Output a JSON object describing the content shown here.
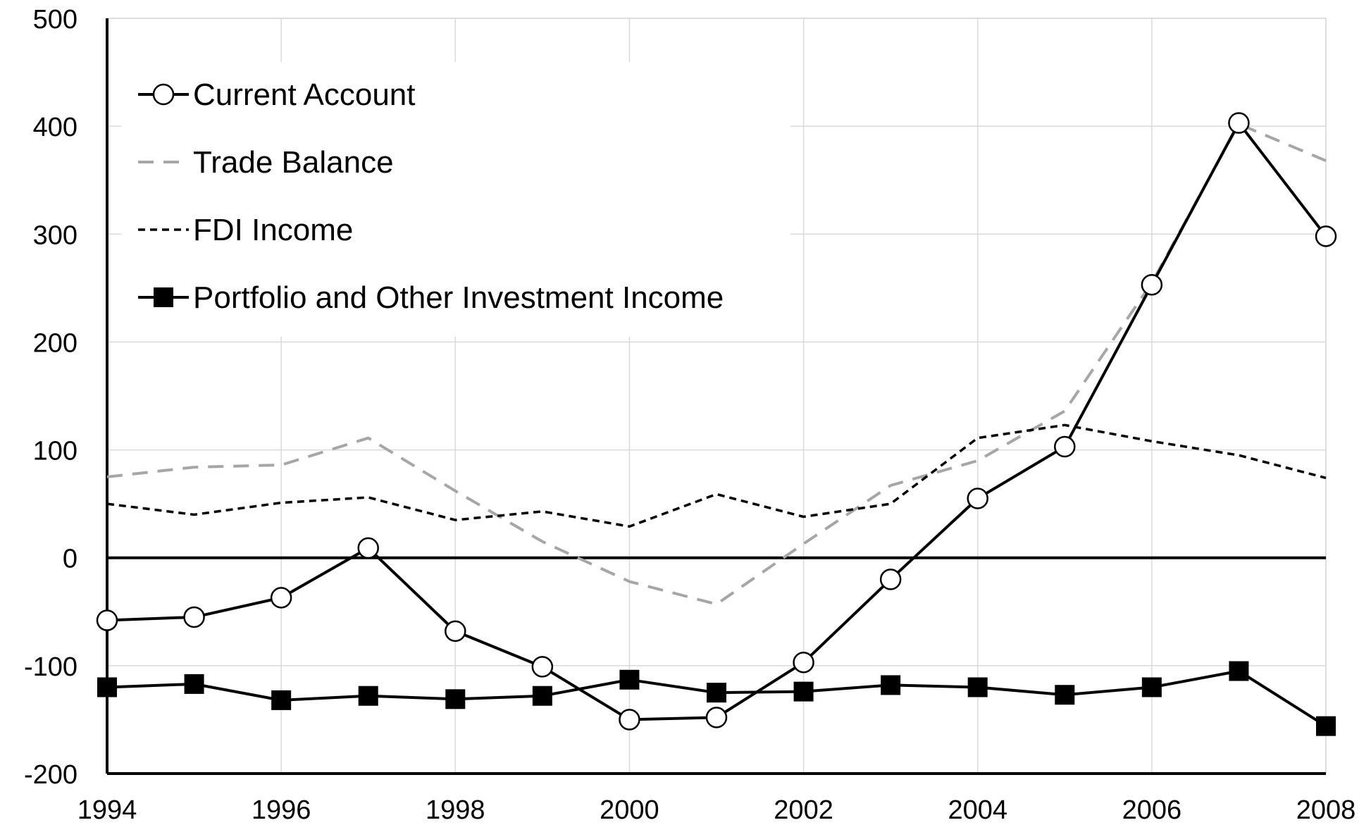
{
  "chart_data": {
    "type": "line",
    "title": "",
    "xlabel": "",
    "ylabel": "",
    "x": [
      1994,
      1995,
      1996,
      1997,
      1998,
      1999,
      2000,
      2001,
      2002,
      2003,
      2004,
      2005,
      2006,
      2007,
      2008
    ],
    "x_ticks": [
      1994,
      1996,
      1998,
      2000,
      2002,
      2004,
      2006,
      2008
    ],
    "y_ticks": [
      -200,
      -100,
      0,
      100,
      200,
      300,
      400,
      500
    ],
    "xlim": [
      1994,
      2008
    ],
    "ylim": [
      -200,
      500
    ],
    "grid": true,
    "legend_position": "top-left",
    "series": [
      {
        "name": "Current Account",
        "style": "solid-open-circle",
        "color": "#000000",
        "values": [
          -58,
          -55,
          -37,
          9,
          -68,
          -101,
          -150,
          -148,
          -97,
          -20,
          55,
          103,
          253,
          403,
          298
        ]
      },
      {
        "name": "Trade Balance",
        "style": "dashed-gray",
        "color": "#a6a6a6",
        "values": [
          75,
          84,
          86,
          111,
          62,
          15,
          -22,
          -43,
          13,
          67,
          90,
          136,
          255,
          402,
          368
        ]
      },
      {
        "name": "FDI Income",
        "style": "dotted-black",
        "color": "#000000",
        "values": [
          50,
          40,
          51,
          56,
          35,
          43,
          29,
          59,
          38,
          50,
          111,
          123,
          108,
          95,
          74
        ]
      },
      {
        "name": "Portfolio and Other Investment Income",
        "style": "solid-filled-square",
        "color": "#000000",
        "values": [
          -120,
          -117,
          -132,
          -128,
          -131,
          -128,
          -113,
          -125,
          -124,
          -118,
          -120,
          -127,
          -120,
          -105,
          -156
        ]
      }
    ]
  }
}
